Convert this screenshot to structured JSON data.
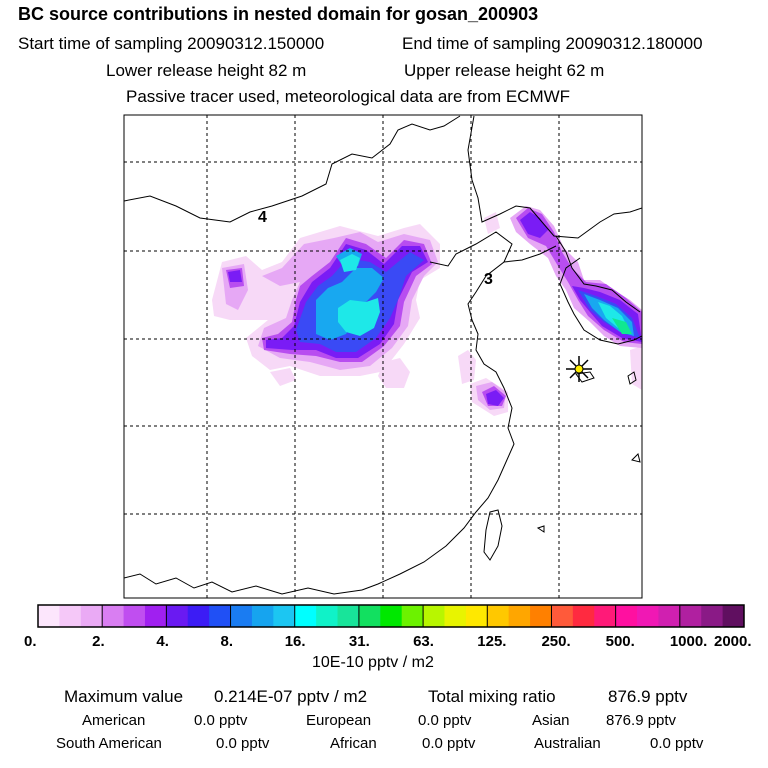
{
  "header": {
    "title": "BC  source contributions in nested domain for gosan_200903",
    "start_label": "Start time of sampling 20090312.150000",
    "end_label": "End time of sampling 20090312.180000",
    "lower_label": "Lower release height   82 m",
    "upper_label": "Upper release height   62 m",
    "note": "Passive tracer used, meteorological data are from ECMWF"
  },
  "map": {
    "region_labels": [
      "4",
      "3"
    ],
    "colors": {
      "coast": "#000000",
      "grid": "#000000",
      "receptor": "#ffee00",
      "receptor_star": "#000000"
    },
    "plume_levels": [
      {
        "level": 1,
        "color": "#f7d9f7"
      },
      {
        "level": 2,
        "color": "#e6a8f5"
      },
      {
        "level": 3,
        "color": "#b84df0"
      },
      {
        "level": 4,
        "color": "#7a1cf5"
      },
      {
        "level": 5,
        "color": "#3a4af5"
      },
      {
        "level": 6,
        "color": "#18a8f0"
      },
      {
        "level": 7,
        "color": "#1ee8e8"
      },
      {
        "level": 8,
        "color": "#10e890"
      }
    ]
  },
  "colorbar": {
    "colors": [
      "#fce6fc",
      "#f5c8f8",
      "#eaaaf5",
      "#d97ef2",
      "#c04ef0",
      "#a020f0",
      "#6a1af2",
      "#3c1cf5",
      "#2050f5",
      "#1a7cf2",
      "#16a4ef",
      "#1cc6f2",
      "#00ffff",
      "#10f2c8",
      "#18e49a",
      "#12e060",
      "#00e800",
      "#6cf200",
      "#b8f600",
      "#e8f400",
      "#ffe800",
      "#ffc800",
      "#ffa600",
      "#ff8000",
      "#ff5a3a",
      "#ff2a40",
      "#ff1a78",
      "#ff10a0",
      "#f018b4",
      "#d020b0",
      "#b020a0",
      "#8a1a86",
      "#600f60"
    ],
    "tick_labels": [
      "0.",
      "2.",
      "4.",
      "8.",
      "16.",
      "31.",
      "63.",
      "125.",
      "250.",
      "500.",
      "1000.",
      "2000."
    ],
    "unit": "10E-10 pptv / m2"
  },
  "stats": {
    "max_label": "Maximum value",
    "max_value": "0.214E-07 pptv / m2",
    "total_label": "Total mixing ratio",
    "total_value": "876.9 pptv",
    "regions": [
      {
        "name": "American",
        "value": "0.0 pptv"
      },
      {
        "name": "European",
        "value": "0.0 pptv"
      },
      {
        "name": "Asian",
        "value": "876.9 pptv"
      },
      {
        "name": "South American",
        "value": "0.0 pptv"
      },
      {
        "name": "African",
        "value": "0.0 pptv"
      },
      {
        "name": "Australian",
        "value": "0.0 pptv"
      }
    ]
  }
}
